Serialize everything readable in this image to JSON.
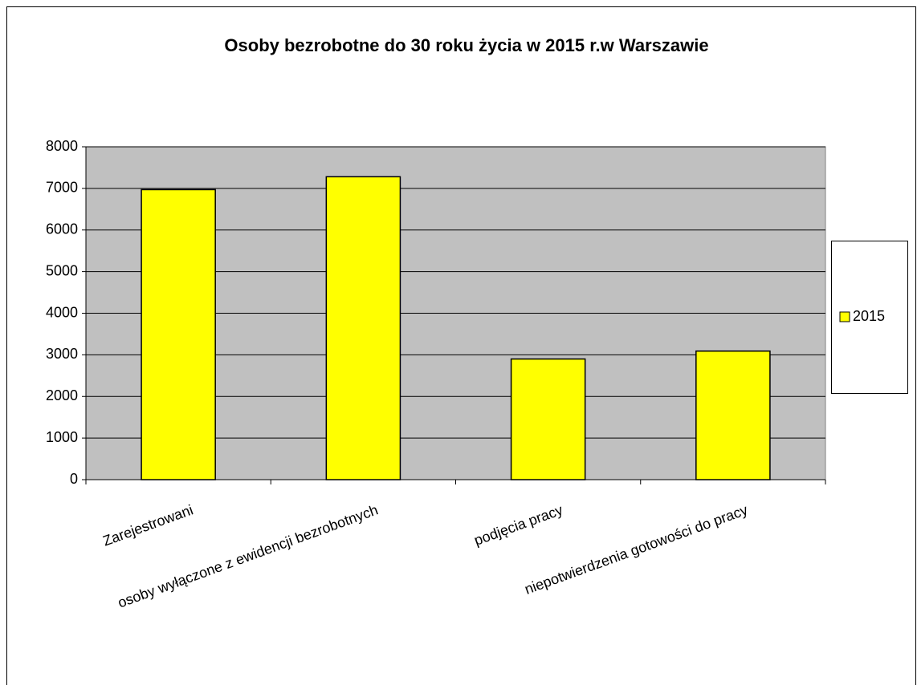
{
  "chart_data": {
    "type": "bar",
    "title": "Osoby bezrobotne do 30 roku życia w 2015 r.w Warszawie",
    "categories": [
      "Zarejestrowani",
      "osoby wyłączone z ewidencji bezrobotnych",
      "podjęcia pracy",
      "niepotwierdzenia gotowości do pracy"
    ],
    "series": [
      {
        "name": "2015",
        "color": "#ffff00",
        "values": [
          6970,
          7280,
          2900,
          3090
        ]
      }
    ],
    "ylim": [
      0,
      8000
    ],
    "yticks": [
      0,
      1000,
      2000,
      3000,
      4000,
      5000,
      6000,
      7000,
      8000
    ],
    "grid": true,
    "legend": "right"
  }
}
